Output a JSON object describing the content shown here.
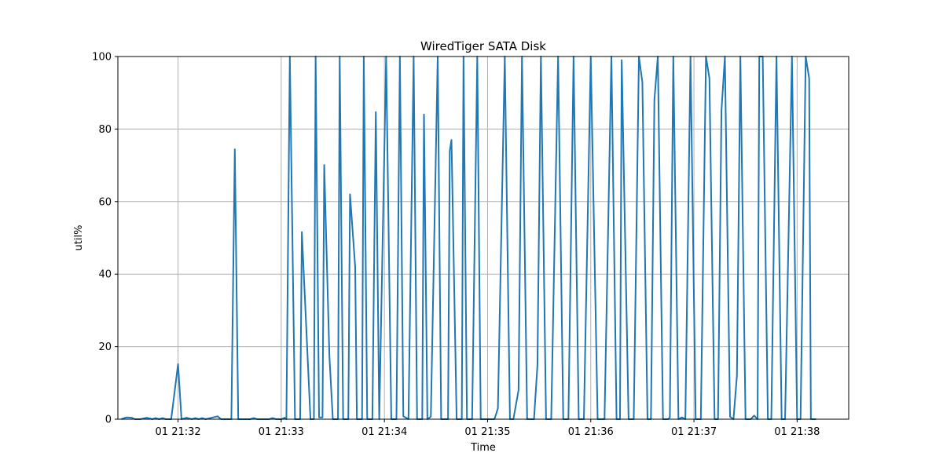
{
  "chart_data": {
    "type": "line",
    "title": "WiredTiger SATA Disk",
    "xlabel": "Time",
    "ylabel": "util%",
    "xlim": [
      "21:31:25",
      "21:38:30"
    ],
    "ylim": [
      0,
      100
    ],
    "grid": true,
    "x_ticks": [
      {
        "time": "21:32:00",
        "label": "01 21:32"
      },
      {
        "time": "21:33:00",
        "label": "01 21:33"
      },
      {
        "time": "21:34:00",
        "label": "01 21:34"
      },
      {
        "time": "21:35:00",
        "label": "01 21:35"
      },
      {
        "time": "21:36:00",
        "label": "01 21:36"
      },
      {
        "time": "21:37:00",
        "label": "01 21:37"
      },
      {
        "time": "21:38:00",
        "label": "01 21:38"
      }
    ],
    "y_ticks": [
      {
        "value": 0,
        "label": "0"
      },
      {
        "value": 20,
        "label": "20"
      },
      {
        "value": 40,
        "label": "40"
      },
      {
        "value": 60,
        "label": "60"
      },
      {
        "value": 80,
        "label": "80"
      },
      {
        "value": 100,
        "label": "100"
      }
    ],
    "series": [
      {
        "color": "#1f77b4",
        "points": [
          [
            "21:31:27",
            0
          ],
          [
            "21:31:30",
            0.5
          ],
          [
            "21:31:33",
            0.4
          ],
          [
            "21:31:35",
            0
          ],
          [
            "21:31:38",
            0
          ],
          [
            "21:31:42",
            0.4
          ],
          [
            "21:31:45",
            0
          ],
          [
            "21:31:47",
            0.3
          ],
          [
            "21:31:49",
            0
          ],
          [
            "21:31:51",
            0.3
          ],
          [
            "21:31:53",
            0
          ],
          [
            "21:31:56",
            0
          ],
          [
            "21:32:00",
            15.2
          ],
          [
            "21:32:02",
            0
          ],
          [
            "21:32:05",
            0.4
          ],
          [
            "21:32:08",
            0
          ],
          [
            "21:32:10",
            0.3
          ],
          [
            "21:32:12",
            0
          ],
          [
            "21:32:14",
            0.3
          ],
          [
            "21:32:16",
            0
          ],
          [
            "21:32:23",
            0.8
          ],
          [
            "21:32:25",
            0
          ],
          [
            "21:32:31",
            0
          ],
          [
            "21:32:33",
            74.4
          ],
          [
            "21:32:35",
            0
          ],
          [
            "21:32:42",
            0
          ],
          [
            "21:32:44",
            0.3
          ],
          [
            "21:32:46",
            0
          ],
          [
            "21:32:53",
            0
          ],
          [
            "21:32:55",
            0.3
          ],
          [
            "21:32:57",
            0
          ],
          [
            "21:33:00",
            0
          ],
          [
            "21:33:02",
            0.4
          ],
          [
            "21:33:03",
            0
          ],
          [
            "21:33:05",
            100
          ],
          [
            "21:33:08",
            0
          ],
          [
            "21:33:11",
            0
          ],
          [
            "21:33:12",
            51.6
          ],
          [
            "21:33:17",
            0
          ],
          [
            "21:33:19",
            0
          ],
          [
            "21:33:20",
            100
          ],
          [
            "21:33:22",
            0.5
          ],
          [
            "21:33:24",
            0.5
          ],
          [
            "21:33:25",
            70.1
          ],
          [
            "21:33:28",
            17.5
          ],
          [
            "21:33:30",
            0
          ],
          [
            "21:33:33",
            0
          ],
          [
            "21:33:34",
            100
          ],
          [
            "21:33:36",
            0
          ],
          [
            "21:33:39",
            0
          ],
          [
            "21:33:40",
            62
          ],
          [
            "21:33:43",
            42
          ],
          [
            "21:33:44",
            0
          ],
          [
            "21:33:47",
            0
          ],
          [
            "21:33:48",
            100
          ],
          [
            "21:33:50",
            0
          ],
          [
            "21:33:53",
            0
          ],
          [
            "21:33:55",
            84.7
          ],
          [
            "21:33:57",
            0
          ],
          [
            "21:34:01",
            100
          ],
          [
            "21:34:04",
            0
          ],
          [
            "21:34:07",
            0
          ],
          [
            "21:34:09",
            100
          ],
          [
            "21:34:11",
            0.8
          ],
          [
            "21:34:14",
            0
          ],
          [
            "21:34:17",
            100
          ],
          [
            "21:34:19",
            0
          ],
          [
            "21:34:22",
            0
          ],
          [
            "21:34:23",
            84
          ],
          [
            "21:34:25",
            0
          ],
          [
            "21:34:27",
            0.7
          ],
          [
            "21:34:31",
            100
          ],
          [
            "21:34:33",
            0
          ],
          [
            "21:34:37",
            0
          ],
          [
            "21:34:38",
            74
          ],
          [
            "21:34:39",
            77
          ],
          [
            "21:34:42",
            0
          ],
          [
            "21:34:45",
            0
          ],
          [
            "21:34:46",
            100
          ],
          [
            "21:34:48",
            0
          ],
          [
            "21:34:51",
            0
          ],
          [
            "21:34:54",
            100
          ],
          [
            "21:34:56",
            0
          ],
          [
            "21:35:00",
            0
          ],
          [
            "21:35:04",
            0
          ],
          [
            "21:35:06",
            3
          ],
          [
            "21:35:10",
            100
          ],
          [
            "21:35:13",
            0
          ],
          [
            "21:35:15",
            0
          ],
          [
            "21:35:18",
            8
          ],
          [
            "21:35:20",
            100
          ],
          [
            "21:35:23",
            0
          ],
          [
            "21:35:27",
            0
          ],
          [
            "21:35:29",
            15
          ],
          [
            "21:35:31",
            100
          ],
          [
            "21:35:34",
            0
          ],
          [
            "21:35:37",
            0
          ],
          [
            "21:35:41",
            100
          ],
          [
            "21:35:44",
            0
          ],
          [
            "21:35:47",
            0
          ],
          [
            "21:35:50",
            100
          ],
          [
            "21:35:53",
            0
          ],
          [
            "21:35:56",
            0
          ],
          [
            "21:36:00",
            100
          ],
          [
            "21:36:04",
            0
          ],
          [
            "21:36:08",
            0
          ],
          [
            "21:36:12",
            100
          ],
          [
            "21:36:15",
            0
          ],
          [
            "21:36:17",
            0
          ],
          [
            "21:36:18",
            99
          ],
          [
            "21:36:22",
            0
          ],
          [
            "21:36:25",
            0
          ],
          [
            "21:36:28",
            100
          ],
          [
            "21:36:30",
            93
          ],
          [
            "21:36:33",
            0
          ],
          [
            "21:36:35",
            0
          ],
          [
            "21:36:37",
            88
          ],
          [
            "21:36:39",
            100
          ],
          [
            "21:36:42",
            0
          ],
          [
            "21:36:45",
            0
          ],
          [
            "21:36:46",
            0.5
          ],
          [
            "21:36:48",
            100
          ],
          [
            "21:36:51",
            0
          ],
          [
            "21:36:53",
            0.5
          ],
          [
            "21:36:55",
            0
          ],
          [
            "21:36:58",
            100
          ],
          [
            "21:37:01",
            0
          ],
          [
            "21:37:04",
            0
          ],
          [
            "21:37:07",
            100
          ],
          [
            "21:37:09",
            94
          ],
          [
            "21:37:12",
            0
          ],
          [
            "21:37:14",
            0
          ],
          [
            "21:37:16",
            85
          ],
          [
            "21:37:18",
            100
          ],
          [
            "21:37:21",
            0.7
          ],
          [
            "21:37:23",
            0
          ],
          [
            "21:37:25",
            12
          ],
          [
            "21:37:27",
            100
          ],
          [
            "21:37:30",
            0
          ],
          [
            "21:37:33",
            0
          ],
          [
            "21:37:35",
            1
          ],
          [
            "21:37:37",
            0
          ],
          [
            "21:37:38",
            100
          ],
          [
            "21:37:40",
            100
          ],
          [
            "21:37:43",
            0
          ],
          [
            "21:37:45",
            0
          ],
          [
            "21:37:48",
            100
          ],
          [
            "21:37:51",
            0
          ],
          [
            "21:37:53",
            0
          ],
          [
            "21:37:57",
            100
          ],
          [
            "21:38:00",
            0
          ],
          [
            "21:38:02",
            0
          ],
          [
            "21:38:05",
            100
          ],
          [
            "21:38:07",
            94
          ],
          [
            "21:38:08",
            0
          ],
          [
            "21:38:11",
            0
          ]
        ]
      }
    ]
  }
}
